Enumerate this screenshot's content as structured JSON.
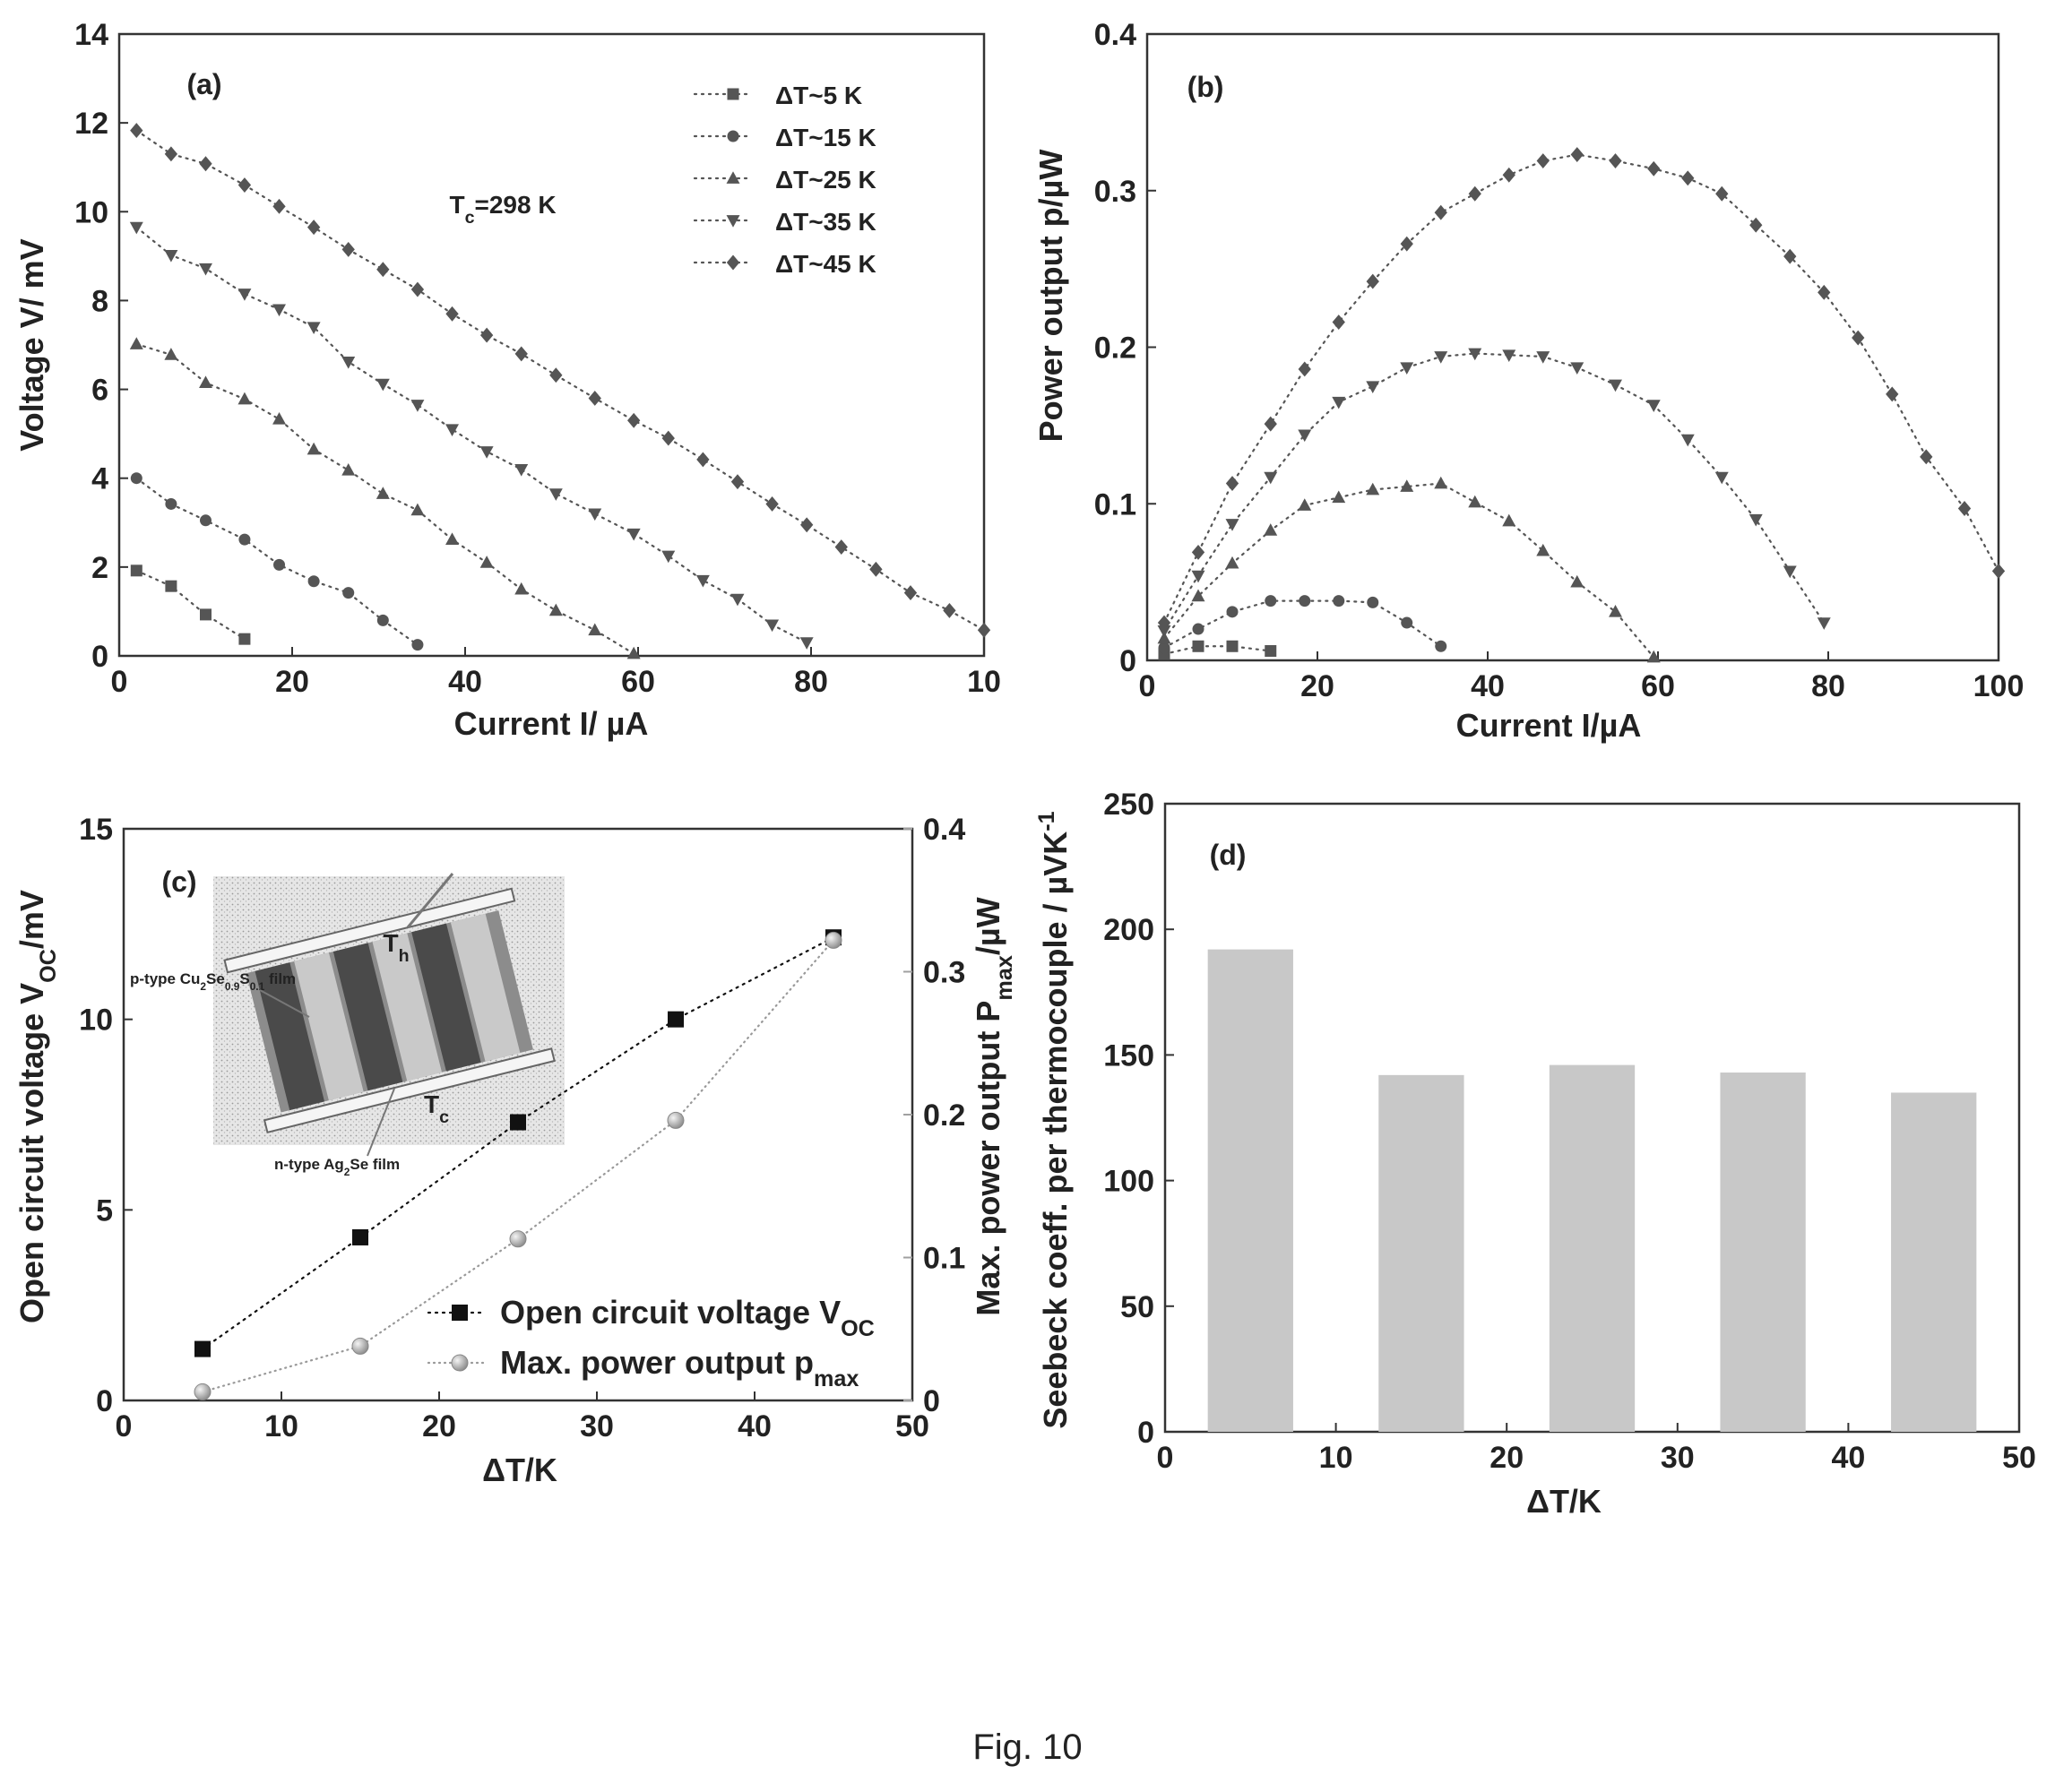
{
  "caption": "Fig. 10",
  "chart_data": [
    {
      "panel": "(a)",
      "type": "scatter",
      "xlabel": "Current I/ µA",
      "ylabel": "Voltage V/ mV",
      "annotation": "Tc=298 K",
      "xlim": [
        0,
        100
      ],
      "ylim": [
        0,
        14
      ],
      "x_ticks": [
        "0",
        "20",
        "40",
        "60",
        "80",
        "10"
      ],
      "y_ticks": [
        "0",
        "2",
        "4",
        "6",
        "8",
        "10",
        "12",
        "14"
      ],
      "legend_position": "top-right",
      "series": [
        {
          "name": "ΔT~5 K",
          "marker": "square",
          "x": [
            2,
            6,
            10,
            14.5
          ],
          "y": [
            1.92,
            1.57,
            0.93,
            0.38
          ]
        },
        {
          "name": "ΔT~15 K",
          "marker": "circle",
          "x": [
            2,
            6,
            10,
            14.5,
            18.5,
            22.5,
            26.5,
            30.5,
            34.5
          ],
          "y": [
            4.0,
            3.42,
            3.05,
            2.62,
            2.05,
            1.68,
            1.42,
            0.8,
            0.25
          ]
        },
        {
          "name": "ΔT~25 K",
          "marker": "triangle-up",
          "x": [
            2,
            6,
            10,
            14.5,
            18.5,
            22.5,
            26.5,
            30.5,
            34.5,
            38.5,
            42.5,
            46.5,
            50.5,
            55,
            59.5
          ],
          "y": [
            7.02,
            6.78,
            6.15,
            5.78,
            5.33,
            4.65,
            4.18,
            3.65,
            3.28,
            2.62,
            2.1,
            1.5,
            1.02,
            0.58,
            0.05
          ]
        },
        {
          "name": "ΔT~35 K",
          "marker": "triangle-down",
          "x": [
            2,
            6,
            10,
            14.5,
            18.5,
            22.5,
            26.5,
            30.5,
            34.5,
            38.5,
            42.5,
            46.5,
            50.5,
            55,
            59.5,
            63.5,
            67.5,
            71.5,
            75.5,
            79.5
          ],
          "y": [
            9.65,
            9.02,
            8.72,
            8.15,
            7.8,
            7.4,
            6.62,
            6.12,
            5.65,
            5.1,
            4.6,
            4.2,
            3.65,
            3.2,
            2.75,
            2.25,
            1.7,
            1.28,
            0.7,
            0.3
          ]
        },
        {
          "name": "ΔT~45 K",
          "marker": "diamond",
          "x": [
            2,
            6,
            10,
            14.5,
            18.5,
            22.5,
            26.5,
            30.5,
            34.5,
            38.5,
            42.5,
            46.5,
            50.5,
            55,
            59.5,
            63.5,
            67.5,
            71.5,
            75.5,
            79.5,
            83.5,
            87.5,
            91.5,
            96,
            100
          ],
          "y": [
            11.83,
            11.3,
            11.08,
            10.6,
            10.12,
            9.65,
            9.15,
            8.7,
            8.25,
            7.7,
            7.22,
            6.8,
            6.32,
            5.8,
            5.3,
            4.9,
            4.42,
            3.92,
            3.42,
            2.95,
            2.45,
            1.95,
            1.42,
            1.02,
            0.58
          ]
        }
      ]
    },
    {
      "panel": "(b)",
      "type": "scatter",
      "xlabel": "Current I/µA",
      "ylabel": "Power output p/µW",
      "xlim": [
        0,
        100
      ],
      "ylim": [
        0,
        0.4
      ],
      "x_ticks": [
        "0",
        "20",
        "40",
        "60",
        "80",
        "100"
      ],
      "y_ticks": [
        "0",
        "0.1",
        "0.2",
        "0.3",
        "0.4"
      ],
      "series": [
        {
          "marker": "square",
          "x": [
            2,
            6,
            10,
            14.5
          ],
          "y": [
            0.004,
            0.009,
            0.009,
            0.006
          ]
        },
        {
          "marker": "circle",
          "x": [
            2,
            6,
            10,
            14.5,
            18.5,
            22.5,
            26.5,
            30.5,
            34.5
          ],
          "y": [
            0.008,
            0.02,
            0.031,
            0.038,
            0.038,
            0.038,
            0.037,
            0.024,
            0.009
          ]
        },
        {
          "marker": "triangle-up",
          "x": [
            2,
            6,
            10,
            14.5,
            18.5,
            22.5,
            26.5,
            30.5,
            34.5,
            38.5,
            42.5,
            46.5,
            50.5,
            55,
            59.5
          ],
          "y": [
            0.014,
            0.041,
            0.062,
            0.083,
            0.099,
            0.104,
            0.109,
            0.111,
            0.113,
            0.101,
            0.089,
            0.07,
            0.05,
            0.031,
            0.002
          ]
        },
        {
          "marker": "triangle-down",
          "x": [
            2,
            6,
            10,
            14.5,
            18.5,
            22.5,
            26.5,
            30.5,
            34.5,
            38.5,
            42.5,
            46.5,
            50.5,
            55,
            59.5,
            63.5,
            67.5,
            71.5,
            75.5,
            79.5
          ],
          "y": [
            0.019,
            0.054,
            0.087,
            0.117,
            0.144,
            0.165,
            0.175,
            0.187,
            0.194,
            0.196,
            0.195,
            0.194,
            0.187,
            0.176,
            0.163,
            0.141,
            0.117,
            0.09,
            0.057,
            0.024
          ]
        },
        {
          "marker": "diamond",
          "x": [
            2,
            6,
            10,
            14.5,
            18.5,
            22.5,
            26.5,
            30.5,
            34.5,
            38.5,
            42.5,
            46.5,
            50.5,
            55,
            59.5,
            63.5,
            67.5,
            71.5,
            75.5,
            79.5,
            83.5,
            87.5,
            91.5,
            96,
            100
          ],
          "y": [
            0.024,
            0.069,
            0.113,
            0.151,
            0.186,
            0.216,
            0.242,
            0.266,
            0.286,
            0.298,
            0.31,
            0.319,
            0.323,
            0.319,
            0.314,
            0.308,
            0.298,
            0.278,
            0.258,
            0.235,
            0.206,
            0.17,
            0.13,
            0.097,
            0.057
          ]
        }
      ]
    },
    {
      "panel": "(c)",
      "type": "line",
      "xlabel": "ΔT/K",
      "ylabel": "Open circuit voltage V_OC/mV",
      "ylabel_right": "Max. power output P_max/µW",
      "xlim": [
        0,
        50
      ],
      "ylim": [
        0,
        15
      ],
      "ylim_right": [
        0,
        0.4
      ],
      "x_ticks": [
        "0",
        "10",
        "20",
        "30",
        "40",
        "50"
      ],
      "y_ticks": [
        "0",
        "5",
        "10",
        "15"
      ],
      "y_ticks_right": [
        "0",
        "0.1",
        "0.2",
        "0.3",
        "0.4"
      ],
      "x": [
        5,
        15,
        25,
        35,
        45
      ],
      "series": [
        {
          "name": "Open circuit voltage V_OC",
          "marker": "square",
          "axis": "left",
          "values": [
            1.35,
            4.28,
            7.3,
            10.0,
            12.15
          ]
        },
        {
          "name": "Max. power output p_max",
          "marker": "circle",
          "axis": "right",
          "values": [
            0.006,
            0.038,
            0.113,
            0.196,
            0.322
          ]
        }
      ],
      "inset": {
        "labels": {
          "p_type": "p-type Cu2Se0.9S0.1 film",
          "n_type": "n-type Ag2Se film",
          "t_hot": "Th",
          "t_cold": "Tc"
        }
      }
    },
    {
      "panel": "(d)",
      "type": "bar",
      "xlabel": "ΔT/K",
      "ylabel": "Seebeck coeff. per thermocouple / µVK-1",
      "xlim": [
        0,
        50
      ],
      "ylim": [
        0,
        250
      ],
      "x_ticks": [
        "0",
        "10",
        "20",
        "30",
        "40",
        "50"
      ],
      "y_ticks": [
        "0",
        "50",
        "100",
        "150",
        "200",
        "250"
      ],
      "x": [
        5,
        15,
        25,
        35,
        45
      ],
      "values": [
        192,
        142,
        146,
        143,
        135
      ],
      "bar_color": "#c8c8c8"
    }
  ]
}
